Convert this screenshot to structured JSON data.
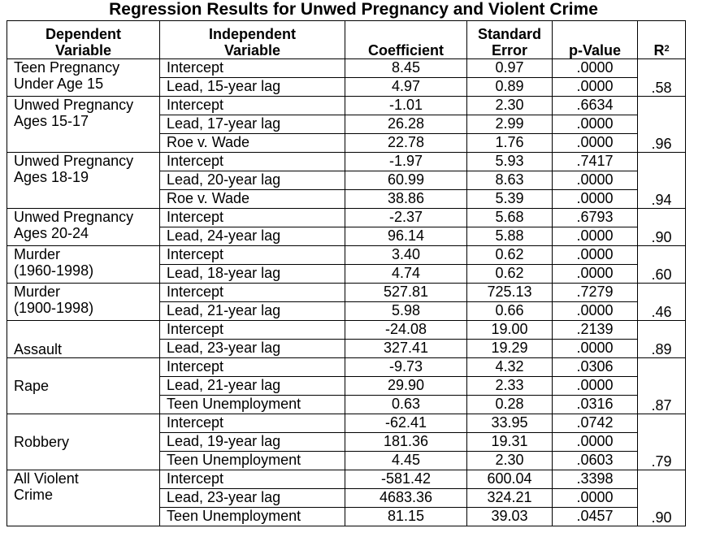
{
  "title": "Regression Results for Unwed Pregnancy and Violent Crime",
  "headers": {
    "dependent_line1": "Dependent",
    "dependent_line2": "Variable",
    "independent_line1": "Independent",
    "independent_line2": "Variable",
    "coefficient": "Coefficient",
    "std_error_line1": "Standard",
    "std_error_line2": "Error",
    "p_value": "p-Value",
    "r2_base": "R",
    "r2_sup": "2"
  },
  "groups": [
    {
      "dep": [
        "Teen Pregnancy",
        "Under Age 15"
      ],
      "dep_align": "top",
      "r2": ".58",
      "rows": [
        {
          "ind": "Intercept",
          "coef": "8.45",
          "se": "0.97",
          "p": ".0000"
        },
        {
          "ind": "Lead, 15-year lag",
          "coef": "4.97",
          "se": "0.89",
          "p": ".0000"
        }
      ]
    },
    {
      "dep": [
        "Unwed Pregnancy",
        "Ages 15-17"
      ],
      "dep_align": "top",
      "r2": ".96",
      "rows": [
        {
          "ind": "Intercept",
          "coef": "-1.01",
          "se": "2.30",
          "p": ".6634"
        },
        {
          "ind": "Lead, 17-year lag",
          "coef": "26.28",
          "se": "2.99",
          "p": ".0000"
        },
        {
          "ind": "Roe v. Wade",
          "coef": "22.78",
          "se": "1.76",
          "p": ".0000"
        }
      ]
    },
    {
      "dep": [
        "Unwed Pregnancy",
        "Ages 18-19"
      ],
      "dep_align": "top",
      "r2": ".94",
      "rows": [
        {
          "ind": "Intercept",
          "coef": "-1.97",
          "se": "5.93",
          "p": ".7417"
        },
        {
          "ind": "Lead, 20-year lag",
          "coef": "60.99",
          "se": "8.63",
          "p": ".0000"
        },
        {
          "ind": "Roe v. Wade",
          "coef": "38.86",
          "se": "5.39",
          "p": ".0000"
        }
      ]
    },
    {
      "dep": [
        "Unwed Pregnancy",
        "Ages 20-24"
      ],
      "dep_align": "top",
      "r2": ".90",
      "rows": [
        {
          "ind": "Intercept",
          "coef": "-2.37",
          "se": "5.68",
          "p": ".6793"
        },
        {
          "ind": "Lead, 24-year lag",
          "coef": "96.14",
          "se": "5.88",
          "p": ".0000"
        }
      ]
    },
    {
      "dep": [
        "Murder",
        "(1960-1998)"
      ],
      "dep_align": "top",
      "r2": ".60",
      "rows": [
        {
          "ind": "Intercept",
          "coef": "3.40",
          "se": "0.62",
          "p": ".0000"
        },
        {
          "ind": "Lead, 18-year lag",
          "coef": "4.74",
          "se": "0.62",
          "p": ".0000"
        }
      ]
    },
    {
      "dep": [
        "Murder",
        "(1900-1998)"
      ],
      "dep_align": "top",
      "r2": ".46",
      "rows": [
        {
          "ind": "Intercept",
          "coef": "527.81",
          "se": "725.13",
          "p": ".7279"
        },
        {
          "ind": "Lead, 21-year lag",
          "coef": "5.98",
          "se": "0.66",
          "p": ".0000"
        }
      ]
    },
    {
      "dep": [
        "Assault"
      ],
      "dep_align": "bottom",
      "r2": ".89",
      "rows": [
        {
          "ind": "Intercept",
          "coef": "-24.08",
          "se": "19.00",
          "p": ".2139"
        },
        {
          "ind": "Lead, 23-year lag",
          "coef": "327.41",
          "se": "19.29",
          "p": ".0000"
        }
      ]
    },
    {
      "dep": [
        "Rape"
      ],
      "dep_align": "middle",
      "r2": ".87",
      "rows": [
        {
          "ind": "Intercept",
          "coef": "-9.73",
          "se": "4.32",
          "p": ".0306"
        },
        {
          "ind": "Lead, 21-year lag",
          "coef": "29.90",
          "se": "2.33",
          "p": ".0000"
        },
        {
          "ind": "Teen Unemployment",
          "coef": "0.63",
          "se": "0.28",
          "p": ".0316"
        }
      ]
    },
    {
      "dep": [
        "Robbery"
      ],
      "dep_align": "middle",
      "r2": ".79",
      "rows": [
        {
          "ind": "Intercept",
          "coef": "-62.41",
          "se": "33.95",
          "p": ".0742"
        },
        {
          "ind": "Lead, 19-year lag",
          "coef": "181.36",
          "se": "19.31",
          "p": ".0000"
        },
        {
          "ind": "Teen Unemployment",
          "coef": "4.45",
          "se": "2.30",
          "p": ".0603"
        }
      ]
    },
    {
      "dep": [
        "All Violent",
        "Crime"
      ],
      "dep_align": "top",
      "r2": ".90",
      "rows": [
        {
          "ind": "Intercept",
          "coef": "-581.42",
          "se": "600.04",
          "p": ".3398"
        },
        {
          "ind": "Lead, 23-year lag",
          "coef": "4683.36",
          "se": "324.21",
          "p": ".0000"
        },
        {
          "ind": "Teen Unemployment",
          "coef": "81.15",
          "se": "39.03",
          "p": ".0457"
        }
      ]
    }
  ]
}
